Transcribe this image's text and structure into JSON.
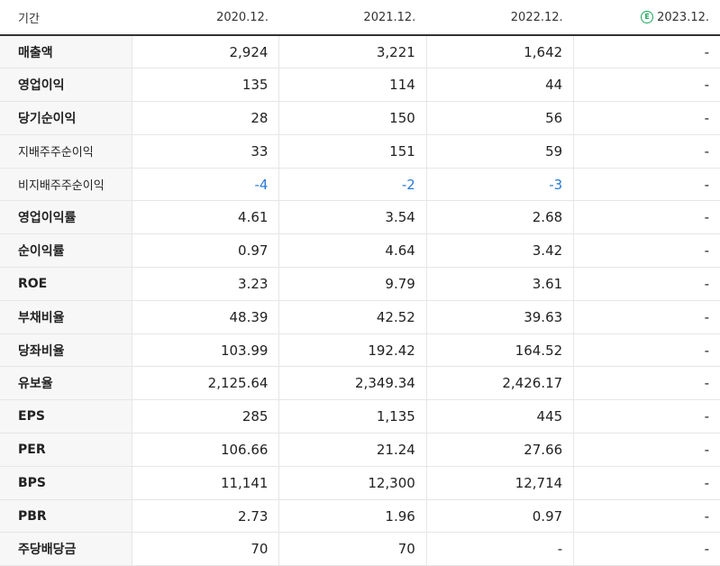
{
  "header": {
    "period_label": "기간",
    "years": [
      "2020.12.",
      "2021.12.",
      "2022.12."
    ],
    "estimate_year": "2023.12.",
    "estimate_badge": "E"
  },
  "rows": [
    {
      "label": "매출액",
      "values": [
        "2,924",
        "3,221",
        "1,642",
        "-"
      ]
    },
    {
      "label": "영업이익",
      "values": [
        "135",
        "114",
        "44",
        "-"
      ]
    },
    {
      "label": "당기순이익",
      "values": [
        "28",
        "150",
        "56",
        "-"
      ]
    },
    {
      "label": "지배주주순이익",
      "values": [
        "33",
        "151",
        "59",
        "-"
      ]
    },
    {
      "label": "비지배주주순이익",
      "values": [
        "-4",
        "-2",
        "-3",
        "-"
      ]
    },
    {
      "label": "영업이익률",
      "values": [
        "4.61",
        "3.54",
        "2.68",
        "-"
      ]
    },
    {
      "label": "순이익률",
      "values": [
        "0.97",
        "4.64",
        "3.42",
        "-"
      ]
    },
    {
      "label": "ROE",
      "values": [
        "3.23",
        "9.79",
        "3.61",
        "-"
      ]
    },
    {
      "label": "부채비율",
      "values": [
        "48.39",
        "42.52",
        "39.63",
        "-"
      ]
    },
    {
      "label": "당좌비율",
      "values": [
        "103.99",
        "192.42",
        "164.52",
        "-"
      ]
    },
    {
      "label": "유보율",
      "values": [
        "2,125.64",
        "2,349.34",
        "2,426.17",
        "-"
      ]
    },
    {
      "label": "EPS",
      "values": [
        "285",
        "1,135",
        "445",
        "-"
      ]
    },
    {
      "label": "PER",
      "values": [
        "106.66",
        "21.24",
        "27.66",
        "-"
      ]
    },
    {
      "label": "BPS",
      "values": [
        "11,141",
        "12,300",
        "12,714",
        "-"
      ]
    },
    {
      "label": "PBR",
      "values": [
        "2.73",
        "1.96",
        "0.97",
        "-"
      ]
    },
    {
      "label": "주당배당금",
      "values": [
        "70",
        "70",
        "-",
        "-"
      ]
    }
  ],
  "colors": {
    "negative": "#2a7ad6",
    "estimate_badge": "#1fa85a",
    "label_bg": "#f7f7f7"
  }
}
